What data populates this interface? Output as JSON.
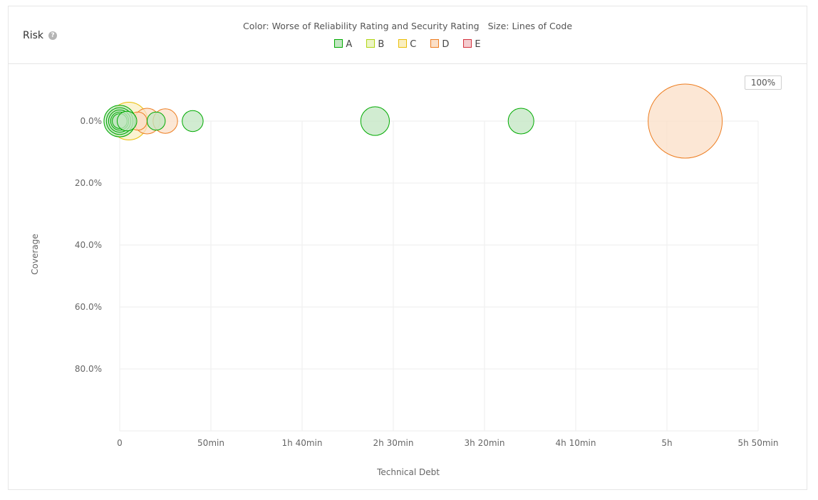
{
  "widget": {
    "title": "Risk",
    "help_icon": "question-circle-icon",
    "zoom_label": "100%"
  },
  "legend": {
    "color_caption": "Color: Worse of Reliability Rating and Security Rating",
    "size_caption": "Size: Lines of Code",
    "items": [
      {
        "label": "A",
        "stroke": "#00aa00",
        "fill": "#c2e6c2"
      },
      {
        "label": "B",
        "stroke": "#b0d513",
        "fill": "#ecf5c4"
      },
      {
        "label": "C",
        "stroke": "#eabe06",
        "fill": "#faefc1"
      },
      {
        "label": "D",
        "stroke": "#ed7d20",
        "fill": "#fbdfc7"
      },
      {
        "label": "E",
        "stroke": "#d4333f",
        "fill": "#f4cccf"
      }
    ]
  },
  "chart_data": {
    "type": "scatter",
    "xlabel": "Technical Debt",
    "ylabel": "Coverage",
    "x_unit": "minutes",
    "xlim": [
      0,
      350
    ],
    "ylim": [
      0,
      100
    ],
    "y_inverted": true,
    "x_ticks": [
      {
        "value": 0,
        "label": "0"
      },
      {
        "value": 50,
        "label": "50min"
      },
      {
        "value": 100,
        "label": "1h 40min"
      },
      {
        "value": 150,
        "label": "2h 30min"
      },
      {
        "value": 200,
        "label": "3h 20min"
      },
      {
        "value": 250,
        "label": "4h 10min"
      },
      {
        "value": 300,
        "label": "5h"
      },
      {
        "value": 350,
        "label": "5h 50min"
      }
    ],
    "y_ticks": [
      {
        "value": 0,
        "label": "0.0%"
      },
      {
        "value": 20,
        "label": "20.0%"
      },
      {
        "value": 40,
        "label": "40.0%"
      },
      {
        "value": 60,
        "label": "60.0%"
      },
      {
        "value": 80,
        "label": "80.0%"
      }
    ],
    "grid": true,
    "points": [
      {
        "x": 310,
        "y": 0,
        "size": 100,
        "rating": "D"
      },
      {
        "x": 5,
        "y": 0,
        "size": 26,
        "rating": "C"
      },
      {
        "x": 15,
        "y": 0,
        "size": 12,
        "rating": "D"
      },
      {
        "x": 25,
        "y": 0,
        "size": 11,
        "rating": "D"
      },
      {
        "x": 10,
        "y": 0,
        "size": 6,
        "rating": "D"
      },
      {
        "x": 0,
        "y": 0,
        "size": 18,
        "rating": "A"
      },
      {
        "x": 0,
        "y": 0,
        "size": 13,
        "rating": "A"
      },
      {
        "x": 0,
        "y": 0,
        "size": 9,
        "rating": "A"
      },
      {
        "x": 0,
        "y": 0,
        "size": 6,
        "rating": "A"
      },
      {
        "x": 0,
        "y": 0,
        "size": 4,
        "rating": "A"
      },
      {
        "x": 4,
        "y": 0,
        "size": 7,
        "rating": "A"
      },
      {
        "x": 20,
        "y": 0,
        "size": 6,
        "rating": "A"
      },
      {
        "x": 40,
        "y": 0,
        "size": 8,
        "rating": "A"
      },
      {
        "x": 140,
        "y": 0,
        "size": 15,
        "rating": "A"
      },
      {
        "x": 220,
        "y": 0,
        "size": 12,
        "rating": "A"
      }
    ]
  }
}
